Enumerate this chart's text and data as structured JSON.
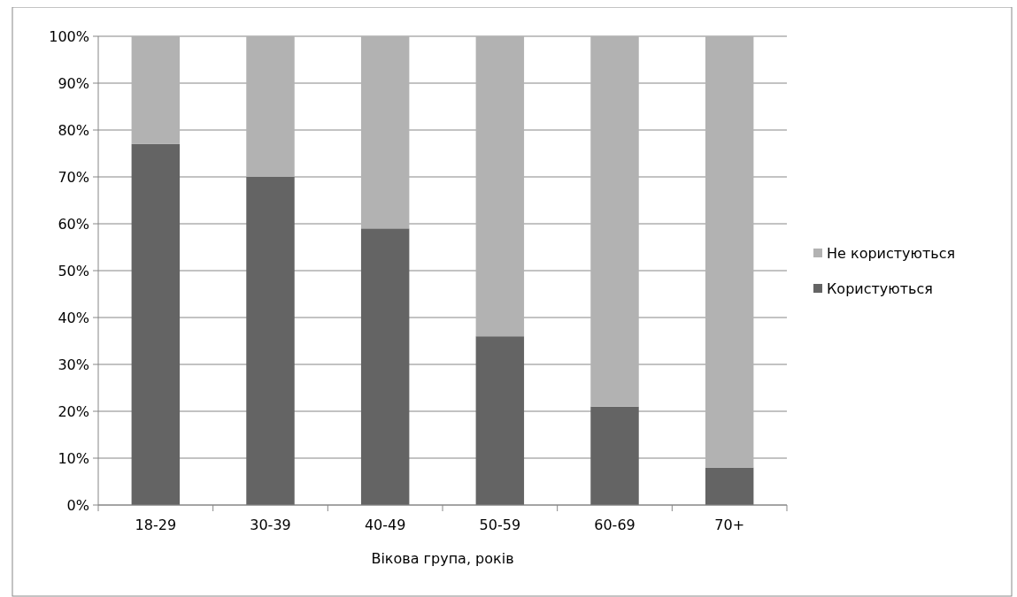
{
  "chart_data": {
    "type": "bar",
    "stacked": true,
    "xlabel": "Вікова група, років",
    "categories": [
      "18-29",
      "30-39",
      "40-49",
      "50-59",
      "60-69",
      "70+"
    ],
    "series": [
      {
        "name": "Користуються",
        "color": "#646464",
        "values": [
          77,
          70,
          59,
          36,
          21,
          8
        ]
      },
      {
        "name": "Не користуються",
        "color": "#b2b2b2",
        "values": [
          23,
          30,
          41,
          64,
          79,
          92
        ]
      }
    ],
    "ylim": [
      0,
      100
    ],
    "yticks": [
      {
        "value": 0,
        "label": "0%"
      },
      {
        "value": 10,
        "label": "10%"
      },
      {
        "value": 20,
        "label": "20%"
      },
      {
        "value": 30,
        "label": "30%"
      },
      {
        "value": 40,
        "label": "40%"
      },
      {
        "value": 50,
        "label": "50%"
      },
      {
        "value": 60,
        "label": "60%"
      },
      {
        "value": 70,
        "label": "70%"
      },
      {
        "value": 80,
        "label": "80%"
      },
      {
        "value": 90,
        "label": "90%"
      },
      {
        "value": 100,
        "label": "100%"
      }
    ],
    "grid": "y",
    "legend": "right"
  }
}
